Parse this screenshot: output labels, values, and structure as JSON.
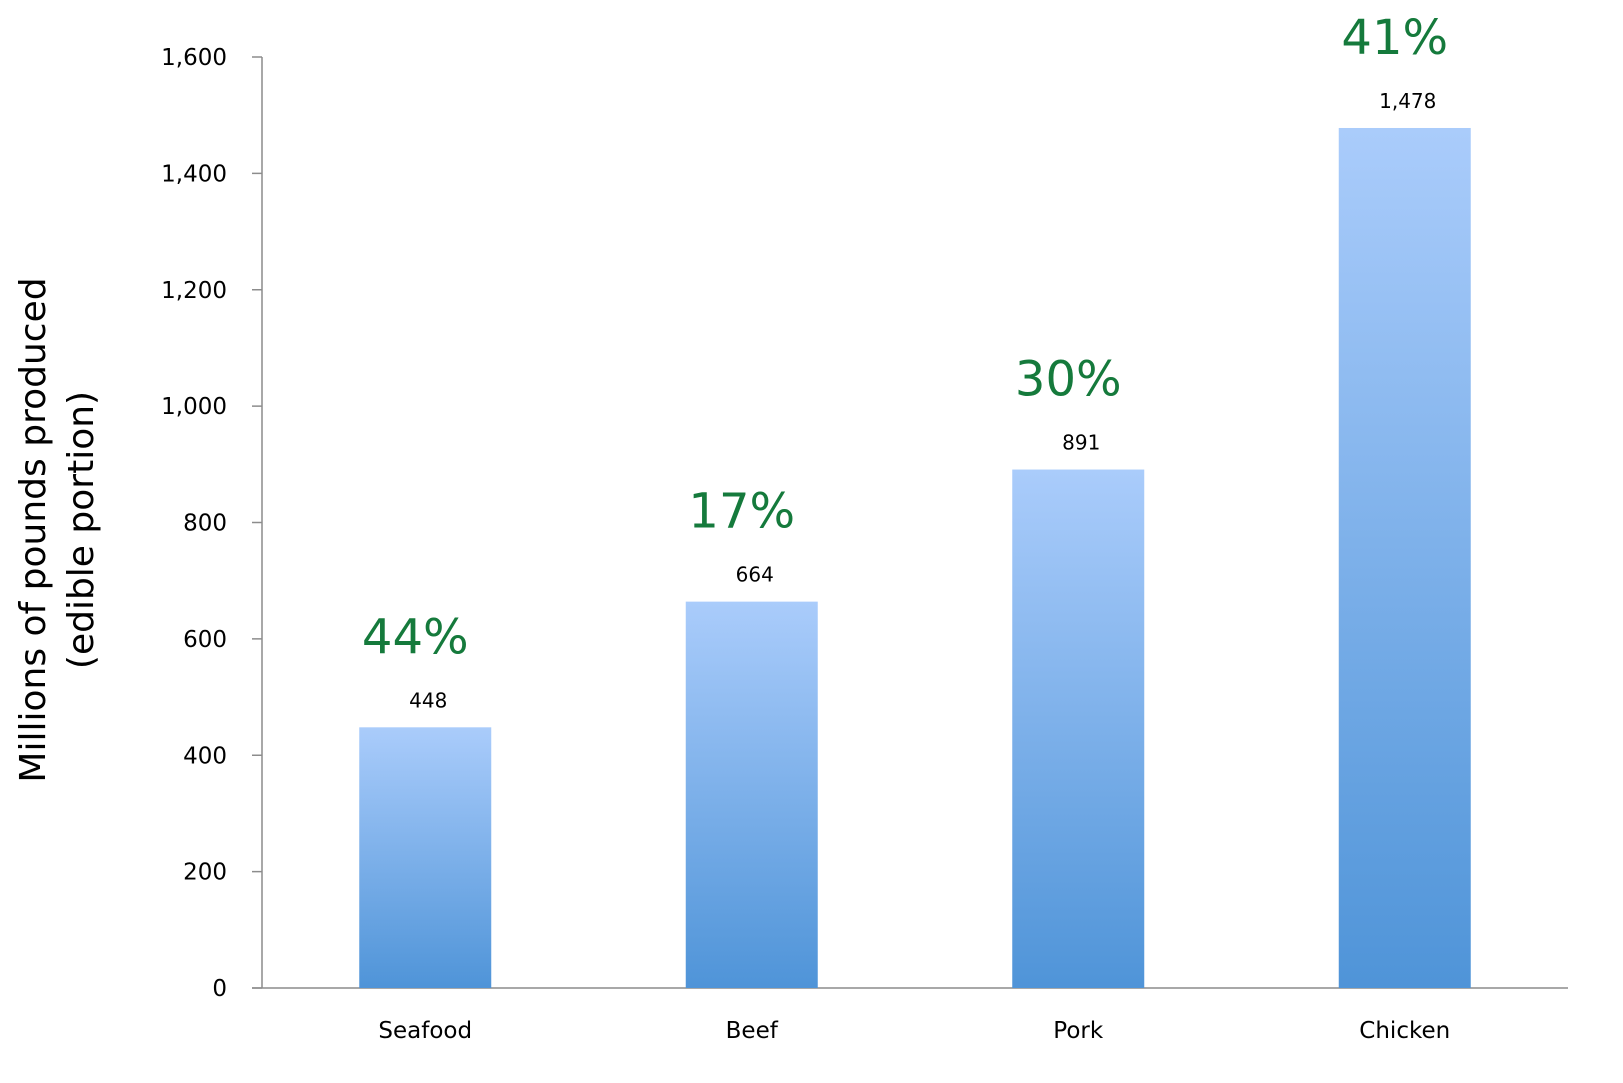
{
  "chart_data": {
    "type": "bar",
    "categories": [
      "Seafood",
      "Beef",
      "Pork",
      "Chicken"
    ],
    "values": [
      448,
      664,
      891,
      1478
    ],
    "data_labels": [
      "448",
      "664",
      "891",
      "1,478"
    ],
    "percent_labels": [
      "44%",
      "17%",
      "30%",
      "41%"
    ],
    "title": "",
    "xlabel": "",
    "ylabel_lines": [
      "Millions of pounds produced",
      "(edible portion)"
    ],
    "ylim": [
      0,
      1600
    ],
    "yticks": [
      0,
      200,
      400,
      600,
      800,
      1000,
      1200,
      1400,
      1600
    ],
    "ytick_labels": [
      "0",
      "200",
      "400",
      "600",
      "800",
      "1,000",
      "1,200",
      "1,400",
      "1,600"
    ],
    "grid": false,
    "legend": "none",
    "colors": {
      "bar_top": "#aaccfb",
      "bar_bottom": "#4f94d8",
      "percent_label": "#157a3c",
      "axis": "#8c8c8c"
    }
  }
}
